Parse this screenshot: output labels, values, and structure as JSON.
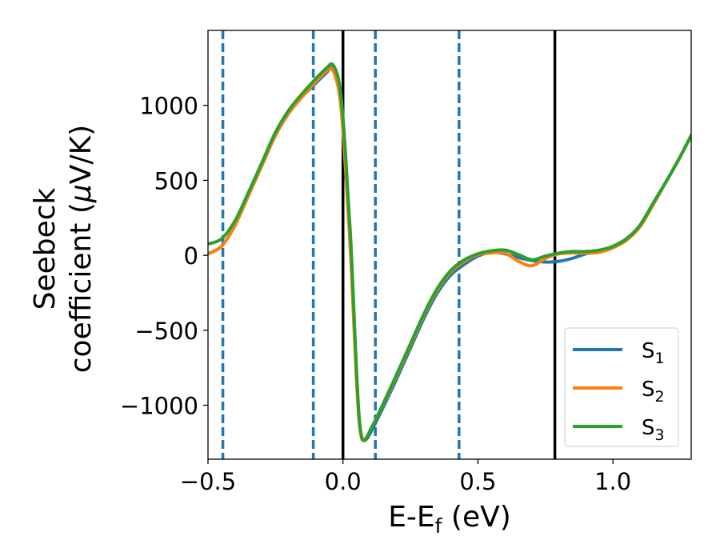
{
  "chart_data": {
    "type": "line",
    "title": "",
    "xlabel": "E-E",
    "xlabel_sub": "f",
    "xlabel_suffix": " (eV)",
    "ylabel_line1": "Seebeck",
    "ylabel_line2_prefix": "coefficient  (",
    "ylabel_mu": "μ",
    "ylabel_line2_suffix": "V/K)",
    "xlim": [
      -0.5,
      1.29
    ],
    "ylim": [
      -1360,
      1500
    ],
    "xticks": [
      -0.5,
      0.0,
      0.5,
      1.0
    ],
    "xtick_labels": [
      "−0.5",
      "0.0",
      "0.5",
      "1.0"
    ],
    "yticks": [
      -1000,
      -500,
      0,
      500,
      1000
    ],
    "ytick_labels": [
      "−1000",
      "−500",
      "0",
      "500",
      "1000"
    ],
    "grid": false,
    "legend_position": "lower-right",
    "vlines_solid": [
      0.0,
      0.785
    ],
    "vlines_dashed": [
      -0.445,
      -0.11,
      0.12,
      0.43
    ],
    "series": [
      {
        "name": "S",
        "sub": "1",
        "color": "#1f77b4",
        "x": [
          -0.5,
          -0.45,
          -0.4,
          -0.35,
          -0.3,
          -0.25,
          -0.2,
          -0.15,
          -0.1,
          -0.06,
          -0.04,
          -0.02,
          -0.01,
          0.0,
          0.01,
          0.02,
          0.03,
          0.04,
          0.05,
          0.06,
          0.07,
          0.08,
          0.09,
          0.1,
          0.12,
          0.15,
          0.2,
          0.25,
          0.3,
          0.35,
          0.4,
          0.45,
          0.5,
          0.55,
          0.6,
          0.65,
          0.7,
          0.75,
          0.8,
          0.85,
          0.9,
          0.95,
          1.0,
          1.05,
          1.1,
          1.15,
          1.2,
          1.25,
          1.29
        ],
        "values": [
          10,
          60,
          200,
          400,
          600,
          800,
          950,
          1060,
          1150,
          1220,
          1250,
          1150,
          1050,
          850,
          600,
          300,
          0,
          -400,
          -800,
          -1100,
          -1220,
          -1235,
          -1220,
          -1190,
          -1120,
          -1010,
          -820,
          -620,
          -420,
          -250,
          -130,
          -60,
          -5,
          20,
          10,
          -15,
          -35,
          -45,
          -40,
          -20,
          10,
          30,
          60,
          110,
          200,
          350,
          500,
          660,
          800
        ]
      },
      {
        "name": "S",
        "sub": "2",
        "color": "#ff7f0e",
        "x": [
          -0.5,
          -0.45,
          -0.4,
          -0.35,
          -0.3,
          -0.25,
          -0.2,
          -0.15,
          -0.1,
          -0.06,
          -0.04,
          -0.02,
          -0.01,
          0.0,
          0.01,
          0.02,
          0.03,
          0.04,
          0.05,
          0.06,
          0.07,
          0.08,
          0.09,
          0.1,
          0.12,
          0.15,
          0.2,
          0.25,
          0.3,
          0.35,
          0.4,
          0.45,
          0.5,
          0.55,
          0.6,
          0.65,
          0.7,
          0.75,
          0.8,
          0.85,
          0.9,
          0.95,
          1.0,
          1.05,
          1.1,
          1.15,
          1.2,
          1.25,
          1.29
        ],
        "values": [
          10,
          60,
          200,
          400,
          600,
          800,
          950,
          1060,
          1160,
          1230,
          1240,
          1140,
          1030,
          830,
          560,
          260,
          -50,
          -450,
          -830,
          -1110,
          -1225,
          -1230,
          -1205,
          -1170,
          -1100,
          -990,
          -800,
          -600,
          -400,
          -230,
          -110,
          -40,
          5,
          15,
          15,
          -40,
          -70,
          -20,
          10,
          15,
          15,
          20,
          50,
          100,
          190,
          340,
          500,
          660,
          800
        ]
      },
      {
        "name": "S",
        "sub": "3",
        "color": "#2ca02c",
        "x": [
          -0.5,
          -0.45,
          -0.4,
          -0.35,
          -0.3,
          -0.25,
          -0.2,
          -0.15,
          -0.1,
          -0.06,
          -0.04,
          -0.02,
          -0.01,
          0.0,
          0.01,
          0.02,
          0.03,
          0.04,
          0.05,
          0.06,
          0.07,
          0.08,
          0.09,
          0.1,
          0.12,
          0.15,
          0.2,
          0.25,
          0.3,
          0.35,
          0.4,
          0.45,
          0.5,
          0.55,
          0.6,
          0.65,
          0.7,
          0.75,
          0.8,
          0.85,
          0.9,
          0.95,
          1.0,
          1.05,
          1.1,
          1.15,
          1.2,
          1.25,
          1.29
        ],
        "values": [
          75,
          110,
          230,
          420,
          620,
          820,
          970,
          1080,
          1180,
          1250,
          1275,
          1200,
          1100,
          920,
          660,
          360,
          60,
          -350,
          -760,
          -1080,
          -1215,
          -1230,
          -1210,
          -1170,
          -1100,
          -985,
          -790,
          -590,
          -390,
          -220,
          -100,
          -30,
          10,
          30,
          35,
          5,
          -30,
          -5,
          15,
          25,
          25,
          35,
          60,
          110,
          200,
          350,
          500,
          660,
          800
        ]
      }
    ]
  }
}
